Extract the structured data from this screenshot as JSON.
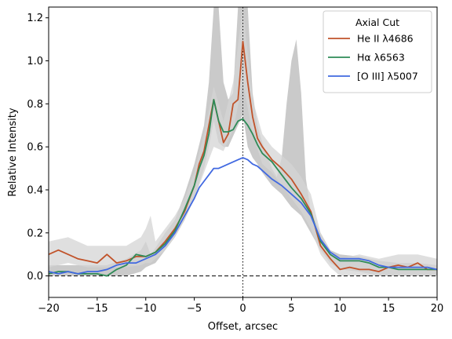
{
  "chart_data": {
    "type": "line",
    "xlabel": "Offset, arcsec",
    "ylabel": "Relative Intensity",
    "xlim": [
      -20,
      20
    ],
    "ylim": [
      -0.1,
      1.25
    ],
    "xticks": [
      -20,
      -15,
      -10,
      -5,
      0,
      5,
      10,
      15,
      20
    ],
    "xtick_labels": [
      "−20",
      "−15",
      "−10",
      "−5",
      "0",
      "5",
      "10",
      "15",
      "20"
    ],
    "yticks": [
      0.0,
      0.2,
      0.4,
      0.6,
      0.8,
      1.0,
      1.2
    ],
    "ytick_labels": [
      "0.0",
      "0.2",
      "0.4",
      "0.6",
      "0.8",
      "1.0",
      "1.2"
    ],
    "grid": false,
    "legend": {
      "title": "Axial Cut",
      "placement": "top-right"
    },
    "reference_lines": [
      {
        "orientation": "horizontal",
        "value": 0,
        "style": "dashed",
        "color": "#000000"
      },
      {
        "orientation": "vertical",
        "value": 0,
        "style": "dotted",
        "color": "#000000"
      }
    ],
    "series": [
      {
        "name": "He II λ4686",
        "color": "#c1532a",
        "x": [
          -20,
          -19,
          -18,
          -17,
          -16,
          -15,
          -14,
          -13,
          -12,
          -11,
          -10,
          -9,
          -8,
          -7,
          -6,
          -5,
          -4.5,
          -4,
          -3.5,
          -3,
          -2.5,
          -2,
          -1.5,
          -1,
          -0.5,
          0,
          0.5,
          1,
          1.5,
          2,
          3,
          4,
          5,
          6,
          7,
          8,
          9,
          10,
          11,
          12,
          13,
          14,
          15,
          16,
          17,
          18,
          19,
          20
        ],
        "values": [
          0.1,
          0.12,
          0.1,
          0.08,
          0.07,
          0.06,
          0.1,
          0.06,
          0.07,
          0.09,
          0.09,
          0.11,
          0.16,
          0.22,
          0.3,
          0.42,
          0.52,
          0.58,
          0.7,
          0.82,
          0.72,
          0.62,
          0.66,
          0.8,
          0.82,
          1.09,
          0.9,
          0.74,
          0.64,
          0.6,
          0.54,
          0.5,
          0.45,
          0.38,
          0.3,
          0.14,
          0.08,
          0.03,
          0.04,
          0.03,
          0.03,
          0.02,
          0.04,
          0.05,
          0.04,
          0.06,
          0.03,
          0.03
        ]
      },
      {
        "name": "Hα λ6563",
        "color": "#2e8b57",
        "x": [
          -20,
          -19,
          -18,
          -17,
          -16,
          -15,
          -14,
          -13,
          -12,
          -11,
          -10,
          -9,
          -8,
          -7,
          -6,
          -5,
          -4.5,
          -4,
          -3.5,
          -3,
          -2.5,
          -2,
          -1.5,
          -1,
          -0.5,
          0,
          0.5,
          1,
          1.5,
          2,
          3,
          4,
          5,
          6,
          7,
          8,
          9,
          10,
          11,
          12,
          13,
          14,
          15,
          16,
          17,
          18,
          19,
          20
        ],
        "values": [
          0.01,
          0.02,
          0.02,
          0.01,
          0.01,
          0.01,
          0.0,
          0.03,
          0.05,
          0.1,
          0.09,
          0.11,
          0.15,
          0.21,
          0.31,
          0.42,
          0.5,
          0.56,
          0.66,
          0.82,
          0.72,
          0.67,
          0.67,
          0.68,
          0.72,
          0.73,
          0.7,
          0.66,
          0.61,
          0.57,
          0.53,
          0.47,
          0.41,
          0.36,
          0.29,
          0.16,
          0.1,
          0.07,
          0.07,
          0.07,
          0.06,
          0.04,
          0.04,
          0.03,
          0.03,
          0.03,
          0.03,
          0.03
        ]
      },
      {
        "name": "[O III] λ5007",
        "color": "#4169e1",
        "x": [
          -20,
          -19,
          -18,
          -17,
          -16,
          -15,
          -14,
          -13,
          -12,
          -11,
          -10,
          -9,
          -8,
          -7,
          -6,
          -5,
          -4.5,
          -4,
          -3.5,
          -3,
          -2.5,
          -2,
          -1.5,
          -1,
          -0.5,
          0,
          0.5,
          1,
          1.5,
          2,
          3,
          4,
          5,
          6,
          7,
          8,
          9,
          10,
          11,
          12,
          13,
          14,
          15,
          16,
          17,
          18,
          19,
          20
        ],
        "values": [
          0.02,
          0.01,
          0.02,
          0.01,
          0.02,
          0.02,
          0.03,
          0.05,
          0.06,
          0.06,
          0.08,
          0.1,
          0.14,
          0.2,
          0.28,
          0.36,
          0.41,
          0.44,
          0.47,
          0.5,
          0.5,
          0.51,
          0.52,
          0.53,
          0.54,
          0.55,
          0.54,
          0.52,
          0.51,
          0.49,
          0.45,
          0.42,
          0.38,
          0.34,
          0.28,
          0.17,
          0.11,
          0.08,
          0.08,
          0.08,
          0.07,
          0.05,
          0.04,
          0.04,
          0.04,
          0.04,
          0.04,
          0.03
        ]
      }
    ],
    "uncertainty_bands": [
      {
        "color": "#b8b8b8",
        "x": [
          -20,
          -18,
          -16,
          -14,
          -12,
          -10.5,
          -10,
          -9.5,
          -9,
          -8,
          -7,
          -6,
          -5,
          -4,
          -3.5,
          -3,
          -2.5,
          -2,
          -1.5,
          -1,
          -0.5,
          0,
          0.5,
          1,
          1.5,
          2,
          2.5,
          3,
          3.5,
          4,
          4.5,
          5,
          5.5,
          6,
          6.5,
          7,
          8,
          9,
          10,
          12,
          14,
          16,
          18,
          20
        ],
        "lower": [
          0.0,
          0.0,
          0.0,
          0.0,
          0.0,
          0.02,
          0.04,
          0.05,
          0.06,
          0.12,
          0.18,
          0.26,
          0.36,
          0.5,
          0.6,
          0.72,
          0.62,
          0.6,
          0.6,
          0.65,
          0.7,
          0.75,
          0.6,
          0.55,
          0.52,
          0.48,
          0.45,
          0.42,
          0.4,
          0.38,
          0.35,
          0.32,
          0.3,
          0.28,
          0.24,
          0.2,
          0.12,
          0.06,
          0.03,
          0.02,
          0.0,
          0.0,
          0.0,
          0.0
        ],
        "upper": [
          0.05,
          0.05,
          0.05,
          0.05,
          0.08,
          0.12,
          0.16,
          0.1,
          0.13,
          0.2,
          0.26,
          0.38,
          0.52,
          0.7,
          0.9,
          1.25,
          1.25,
          0.9,
          0.82,
          0.85,
          1.25,
          1.25,
          1.25,
          0.85,
          0.7,
          0.62,
          0.56,
          0.5,
          0.46,
          0.55,
          0.8,
          1.0,
          1.1,
          0.85,
          0.45,
          0.3,
          0.2,
          0.12,
          0.1,
          0.09,
          0.07,
          0.06,
          0.06,
          0.05
        ]
      },
      {
        "color": "#d4d4d4",
        "x": [
          -20,
          -18,
          -16,
          -14,
          -12,
          -10.5,
          -10,
          -9.5,
          -9,
          -8,
          -7,
          -6,
          -5,
          -4,
          -3,
          -2,
          -1,
          0,
          1,
          2,
          3,
          4,
          5,
          6,
          7,
          8,
          9,
          10,
          12,
          14,
          16,
          18,
          20
        ],
        "lower": [
          0.04,
          0.06,
          0.04,
          0.04,
          0.04,
          0.05,
          0.06,
          0.06,
          0.08,
          0.12,
          0.18,
          0.26,
          0.36,
          0.48,
          0.6,
          0.58,
          0.68,
          0.9,
          0.66,
          0.52,
          0.48,
          0.42,
          0.36,
          0.3,
          0.22,
          0.1,
          0.04,
          0.0,
          0.0,
          0.0,
          0.0,
          0.0,
          0.0
        ],
        "upper": [
          0.16,
          0.18,
          0.14,
          0.14,
          0.14,
          0.18,
          0.22,
          0.28,
          0.16,
          0.22,
          0.28,
          0.36,
          0.48,
          0.66,
          0.88,
          0.72,
          0.9,
          1.25,
          0.82,
          0.66,
          0.6,
          0.56,
          0.52,
          0.46,
          0.38,
          0.2,
          0.12,
          0.08,
          0.1,
          0.08,
          0.1,
          0.1,
          0.08
        ]
      }
    ]
  }
}
